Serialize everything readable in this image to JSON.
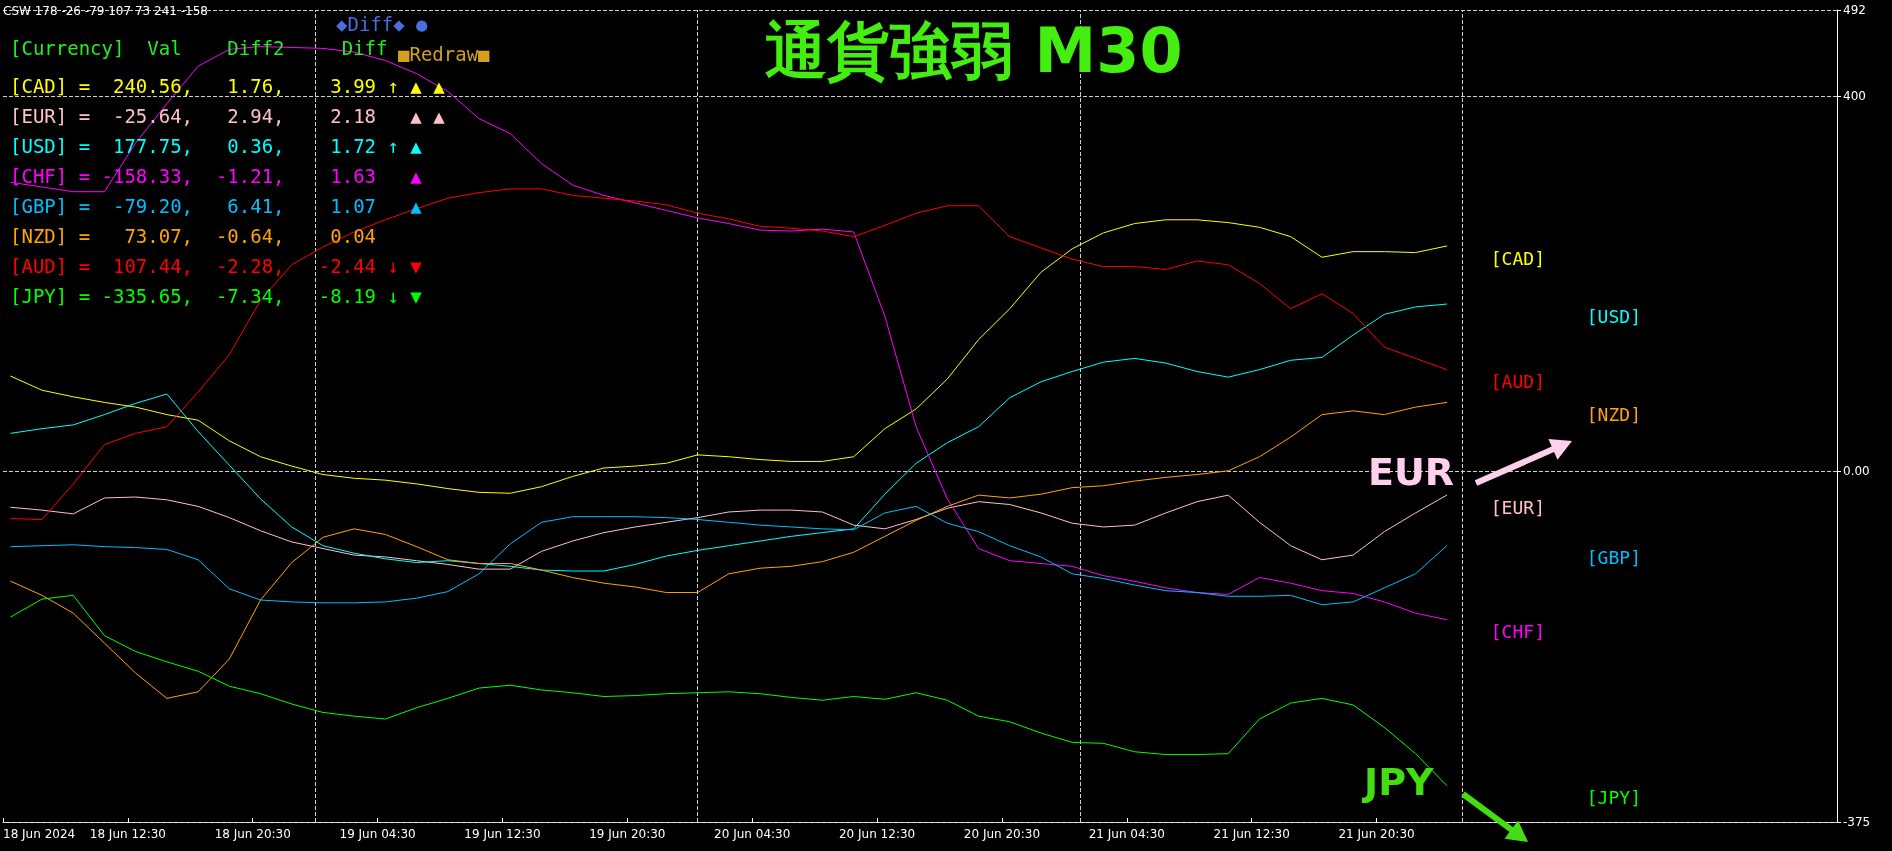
{
  "chart_data": {
    "type": "line",
    "title": "通貨強弱 M30",
    "x": [
      "2024-06-18T05:00",
      "2024-06-18T07:00",
      "2024-06-18T09:00",
      "2024-06-18T11:00",
      "2024-06-18T13:00",
      "2024-06-18T15:00",
      "2024-06-18T17:00",
      "2024-06-18T19:00",
      "2024-06-18T21:00",
      "2024-06-18T23:00",
      "2024-06-19T01:00",
      "2024-06-19T03:00",
      "2024-06-19T05:00",
      "2024-06-19T07:00",
      "2024-06-19T09:00",
      "2024-06-19T11:00",
      "2024-06-19T13:00",
      "2024-06-19T15:00",
      "2024-06-19T17:00",
      "2024-06-19T19:00",
      "2024-06-19T21:00",
      "2024-06-19T23:00",
      "2024-06-20T01:00",
      "2024-06-20T03:00",
      "2024-06-20T05:00",
      "2024-06-20T07:00",
      "2024-06-20T09:00",
      "2024-06-20T11:00",
      "2024-06-20T13:00",
      "2024-06-20T15:00",
      "2024-06-20T17:00",
      "2024-06-20T19:00",
      "2024-06-20T21:00",
      "2024-06-20T23:00",
      "2024-06-21T01:00",
      "2024-06-21T03:00",
      "2024-06-21T05:00",
      "2024-06-21T07:00",
      "2024-06-21T09:00",
      "2024-06-21T11:00",
      "2024-06-21T13:00",
      "2024-06-21T15:00",
      "2024-06-21T17:00",
      "2024-06-21T19:00",
      "2024-06-21T21:00",
      "2024-06-21T23:00",
      "2024-06-22T01:00"
    ],
    "series": [
      {
        "name": "[CAD]",
        "color": "#ffff00",
        "values": [
          101,
          86,
          79,
          73,
          68,
          60,
          54,
          32,
          15,
          5,
          -4,
          -8,
          -10,
          -14,
          -19,
          -23,
          -24,
          -17,
          -6,
          3,
          5,
          8,
          17,
          15,
          12,
          10,
          10,
          15,
          45,
          66,
          98,
          140,
          173,
          212,
          237,
          254,
          264,
          268,
          268,
          265,
          260,
          250,
          228,
          234,
          234,
          233,
          240
        ]
      },
      {
        "name": "[EUR]",
        "color": "#ffc0cb",
        "values": [
          -39,
          -42,
          -46,
          -29,
          -28,
          -31,
          -38,
          -50,
          -64,
          -76,
          -83,
          -90,
          -92,
          -96,
          -100,
          -105,
          -105,
          -86,
          -75,
          -66,
          -60,
          -55,
          -50,
          -44,
          -42,
          -42,
          -44,
          -58,
          -62,
          -52,
          -40,
          -33,
          -36,
          -45,
          -56,
          -60,
          -58,
          -45,
          -33,
          -26,
          -55,
          -80,
          -95,
          -90,
          -65,
          -45,
          -26
        ]
      },
      {
        "name": "[USD]",
        "color": "#00ffff",
        "values": [
          40,
          45,
          49,
          60,
          72,
          82,
          42,
          6,
          -30,
          -60,
          -80,
          -88,
          -94,
          -98,
          -96,
          -99,
          -102,
          -106,
          -107,
          -107,
          -100,
          -91,
          -85,
          -80,
          -75,
          -70,
          -66,
          -62,
          -25,
          8,
          30,
          47,
          78,
          95,
          106,
          116,
          120,
          115,
          106,
          100,
          108,
          118,
          121,
          145,
          167,
          175,
          178
        ]
      },
      {
        "name": "[CHF]",
        "color": "#ff00ff",
        "values": [
          308,
          303,
          298,
          298,
          350,
          392,
          432,
          450,
          453,
          452,
          451,
          447,
          438,
          424,
          405,
          376,
          360,
          328,
          305,
          294,
          286,
          278,
          270,
          264,
          257,
          256,
          258,
          255,
          165,
          47,
          -30,
          -83,
          -96,
          -99,
          -102,
          -112,
          -118,
          -125,
          -130,
          -132,
          -114,
          -120,
          -128,
          -131,
          -140,
          -152,
          -159
        ]
      },
      {
        "name": "[GBP]",
        "color": "#00bfff",
        "values": [
          -81,
          -80,
          -79,
          -81,
          -82,
          -84,
          -95,
          -126,
          -138,
          -140,
          -141,
          -141,
          -140,
          -136,
          -129,
          -110,
          -78,
          -55,
          -49,
          -49,
          -49,
          -50,
          -52,
          -55,
          -58,
          -60,
          -62,
          -63,
          -45,
          -38,
          -56,
          -65,
          -80,
          -92,
          -110,
          -115,
          -122,
          -128,
          -130,
          -134,
          -134,
          -133,
          -143,
          -140,
          -125,
          -110,
          -80
        ]
      },
      {
        "name": "[NZD]",
        "color": "#ffa500",
        "values": [
          -118,
          -133,
          -152,
          -184,
          -216,
          -243,
          -236,
          -201,
          -138,
          -98,
          -71,
          -62,
          -68,
          -81,
          -95,
          -99,
          -99,
          -106,
          -114,
          -120,
          -124,
          -130,
          -130,
          -110,
          -104,
          -102,
          -97,
          -87,
          -70,
          -53,
          -38,
          -26,
          -29,
          -25,
          -18,
          -16,
          -11,
          -7,
          -4,
          0,
          15,
          36,
          60,
          64,
          60,
          68,
          73
        ]
      },
      {
        "name": "[AUD]",
        "color": "#ff0000",
        "values": [
          -51,
          -52,
          -14,
          28,
          40,
          47,
          84,
          124,
          182,
          220,
          239,
          255,
          268,
          280,
          291,
          297,
          301,
          301,
          294,
          291,
          288,
          284,
          275,
          269,
          261,
          259,
          256,
          250,
          262,
          275,
          283,
          283,
          250,
          238,
          226,
          218,
          218,
          215,
          224,
          220,
          200,
          173,
          189,
          168,
          132,
          120,
          108
        ]
      },
      {
        "name": "[JPY]",
        "color": "#00ff00",
        "values": [
          -156,
          -137,
          -133,
          -176,
          -193,
          -204,
          -214,
          -230,
          -238,
          -249,
          -258,
          -262,
          -265,
          -253,
          -243,
          -232,
          -229,
          -234,
          -237,
          -241,
          -240,
          -238,
          -237,
          -236,
          -238,
          -242,
          -245,
          -241,
          -244,
          -237,
          -245,
          -262,
          -268,
          -280,
          -290,
          -291,
          -300,
          -303,
          -303,
          -302,
          -265,
          -248,
          -243,
          -250,
          -274,
          -302,
          -336
        ]
      }
    ],
    "xlim": [
      "2024-06-18T04:30",
      "2024-06-23T02:00"
    ],
    "xticks": [
      {
        "value": "2024-06-18T04:30",
        "label": "18 Jun 2024"
      },
      {
        "value": "2024-06-18T12:30",
        "label": "18 Jun 12:30"
      },
      {
        "value": "2024-06-18T20:30",
        "label": "18 Jun 20:30"
      },
      {
        "value": "2024-06-19T04:30",
        "label": "19 Jun 04:30"
      },
      {
        "value": "2024-06-19T12:30",
        "label": "19 Jun 12:30"
      },
      {
        "value": "2024-06-19T20:30",
        "label": "19 Jun 20:30"
      },
      {
        "value": "2024-06-20T04:30",
        "label": "20 Jun 04:30"
      },
      {
        "value": "2024-06-20T12:30",
        "label": "20 Jun 12:30"
      },
      {
        "value": "2024-06-20T20:30",
        "label": "20 Jun 20:30"
      },
      {
        "value": "2024-06-21T04:30",
        "label": "21 Jun 04:30"
      },
      {
        "value": "2024-06-21T12:30",
        "label": "21 Jun 12:30"
      },
      {
        "value": "2024-06-21T20:30",
        "label": "21 Jun 20:30"
      }
    ],
    "ylim": [
      -375,
      492
    ],
    "yticks": [
      -375,
      {
        "value": 0,
        "label": "0.00"
      },
      400,
      492
    ],
    "grid": "y",
    "ref_lines": [
      {
        "axis": "x",
        "value": "2024-06-19T00:30",
        "color": "#d0d0d0",
        "line_style": "dashed"
      },
      {
        "axis": "x",
        "value": "2024-06-20T01:00",
        "color": "#d0d0d0",
        "line_style": "dashed"
      },
      {
        "axis": "x",
        "value": "2024-06-21T01:30",
        "color": "#d0d0d0",
        "line_style": "dashed"
      },
      {
        "axis": "x",
        "value": "2024-06-22T02:00",
        "color": "#d0d0d0",
        "line_style": "dashed"
      }
    ],
    "legend": false,
    "marker": "none",
    "line_style": "solid",
    "annotations": [
      "CSW 178 -26 -79 107 73 241 -158",
      "[Currency]  Val    Diff2     Diff",
      "[CAD] =  240.56,   1.76,    3.99 ↑ ▲ ▲",
      "[EUR] =  -25.64,   2.94,    2.18   ▲ ▲",
      "[USD] =  177.75,   0.36,    1.72 ↑ ▲",
      "[CHF] = -158.33,  -1.21,    1.63   ▲",
      "[GBP] =  -79.20,   6.41,    1.07   ▲",
      "[NZD] =   73.07,  -0.64,    0.04",
      "[AUD] =  107.44,  -2.28,   -2.44 ↓ ▼",
      "[JPY] = -335.65,  -7.34,   -8.19 ↓ ▼",
      "◆Diff◆ ●",
      "■Redraw■",
      "EUR",
      "JPY"
    ]
  }
}
